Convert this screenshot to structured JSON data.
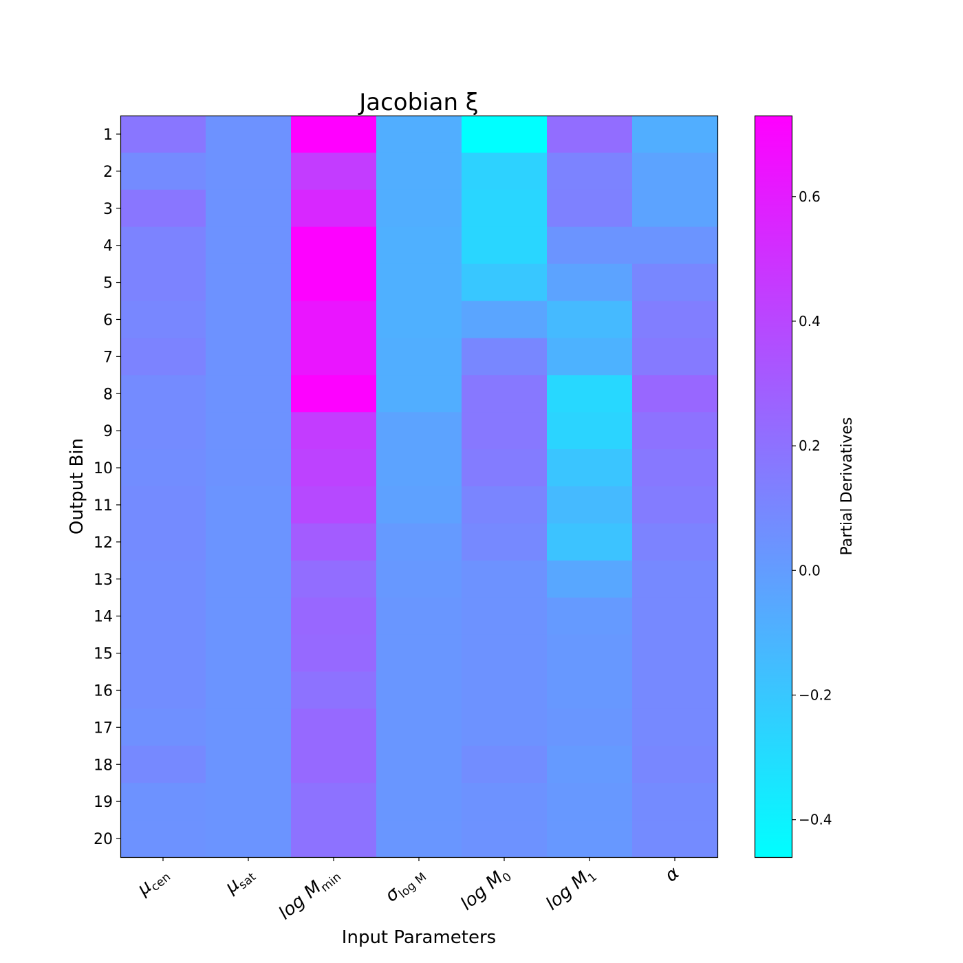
{
  "chart_data": {
    "type": "heatmap",
    "title": "Jacobian ξ",
    "xlabel": "Input Parameters",
    "ylabel": "Output Bin",
    "colorbar_label": "Partial Derivatives",
    "colormap": "cool",
    "vmin": -0.46,
    "vmax": 0.73,
    "colorbar_ticks": [
      -0.4,
      -0.2,
      0.0,
      0.2,
      0.4,
      0.6
    ],
    "colorbar_tick_labels": [
      "−0.4",
      "−0.2",
      "0.0",
      "0.2",
      "0.4",
      "0.6"
    ],
    "x_categories": [
      {
        "base": "μ",
        "sub": "cen"
      },
      {
        "base": "μ",
        "sub": "sat"
      },
      {
        "base": "log M",
        "sub": "min"
      },
      {
        "base": "σ",
        "sub": "log M"
      },
      {
        "base": "log M",
        "sub": "0"
      },
      {
        "base": "log M",
        "sub": "1"
      },
      {
        "base": "α",
        "sub": ""
      }
    ],
    "y_categories": [
      "1",
      "2",
      "3",
      "4",
      "5",
      "6",
      "7",
      "8",
      "9",
      "10",
      "11",
      "12",
      "13",
      "14",
      "15",
      "16",
      "17",
      "18",
      "19",
      "20"
    ],
    "values": [
      [
        0.18,
        0.05,
        0.73,
        -0.08,
        -0.46,
        0.22,
        -0.08
      ],
      [
        0.08,
        0.05,
        0.45,
        -0.08,
        -0.25,
        0.12,
        -0.03
      ],
      [
        0.18,
        0.05,
        0.55,
        -0.08,
        -0.27,
        0.13,
        -0.03
      ],
      [
        0.12,
        0.05,
        0.72,
        -0.09,
        -0.27,
        0.04,
        0.04
      ],
      [
        0.12,
        0.05,
        0.72,
        -0.09,
        -0.2,
        -0.03,
        0.1
      ],
      [
        0.1,
        0.05,
        0.63,
        -0.09,
        -0.04,
        -0.14,
        0.14
      ],
      [
        0.12,
        0.05,
        0.63,
        -0.08,
        0.1,
        -0.1,
        0.16
      ],
      [
        0.08,
        0.05,
        0.72,
        -0.08,
        0.17,
        -0.28,
        0.25
      ],
      [
        0.08,
        0.05,
        0.45,
        -0.03,
        0.17,
        -0.26,
        0.2
      ],
      [
        0.07,
        0.05,
        0.42,
        -0.03,
        0.15,
        -0.19,
        0.17
      ],
      [
        0.08,
        0.04,
        0.39,
        -0.02,
        0.11,
        -0.14,
        0.15
      ],
      [
        0.08,
        0.04,
        0.3,
        0.01,
        0.09,
        -0.18,
        0.12
      ],
      [
        0.07,
        0.04,
        0.22,
        0.02,
        0.05,
        -0.05,
        0.09
      ],
      [
        0.07,
        0.04,
        0.25,
        0.03,
        0.05,
        0.01,
        0.09
      ],
      [
        0.07,
        0.04,
        0.24,
        0.03,
        0.05,
        0.02,
        0.09
      ],
      [
        0.07,
        0.04,
        0.2,
        0.03,
        0.05,
        0.02,
        0.09
      ],
      [
        0.06,
        0.04,
        0.24,
        0.03,
        0.05,
        0.03,
        0.09
      ],
      [
        0.09,
        0.04,
        0.24,
        0.03,
        0.07,
        0.01,
        0.1
      ],
      [
        0.05,
        0.04,
        0.2,
        0.03,
        0.05,
        0.02,
        0.08
      ],
      [
        0.05,
        0.04,
        0.2,
        0.03,
        0.05,
        0.02,
        0.08
      ]
    ]
  }
}
